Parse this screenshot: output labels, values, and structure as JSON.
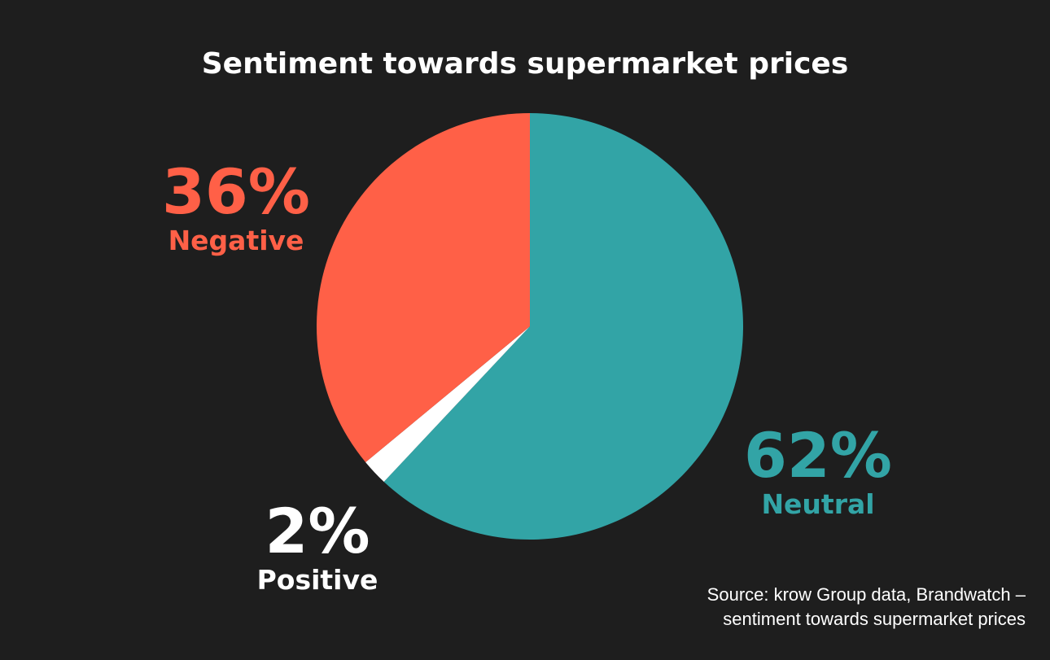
{
  "chart_data": {
    "type": "pie",
    "title": "Sentiment towards supermarket prices",
    "slices": [
      {
        "label": "Neutral",
        "value": 62,
        "value_label": "62%",
        "color": "#32a4a6"
      },
      {
        "label": "Positive",
        "value": 2,
        "value_label": "2%",
        "color": "#ffffff"
      },
      {
        "label": "Negative",
        "value": 36,
        "value_label": "36%",
        "color": "#ff6047"
      }
    ]
  },
  "source": {
    "line1": "Source: krow Group data, Brandwatch –",
    "line2": "sentiment towards supermarket prices"
  }
}
